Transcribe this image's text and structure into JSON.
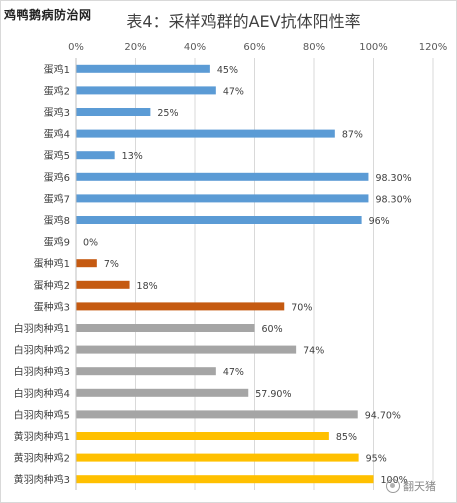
{
  "watermark": "鸡鸭鹅病防治网",
  "chart_data": {
    "type": "bar",
    "orientation": "horizontal",
    "title": "表4：采样鸡群的AEV抗体阳性率",
    "xlim": [
      0,
      120
    ],
    "x_ticks": [
      "0%",
      "20%",
      "40%",
      "60%",
      "80%",
      "100%",
      "120%"
    ],
    "grid": true,
    "categories": [
      "蛋鸡1",
      "蛋鸡2",
      "蛋鸡3",
      "蛋鸡4",
      "蛋鸡5",
      "蛋鸡6",
      "蛋鸡7",
      "蛋鸡8",
      "蛋鸡9",
      "蛋种鸡1",
      "蛋种鸡2",
      "蛋种鸡3",
      "白羽肉种鸡1",
      "白羽肉种鸡2",
      "白羽肉种鸡3",
      "白羽肉种鸡4",
      "白羽肉种鸡5",
      "黄羽肉种鸡1",
      "黄羽肉种鸡2",
      "黄羽肉种鸡3"
    ],
    "values": [
      45,
      47,
      25,
      87,
      13,
      98.3,
      98.3,
      96,
      0,
      7,
      18,
      70,
      60,
      74,
      47,
      57.9,
      94.7,
      85,
      95,
      100
    ],
    "labels": [
      "45%",
      "47%",
      "25%",
      "87%",
      "13%",
      "98.30%",
      "98.30%",
      "96%",
      "0%",
      "7%",
      "18%",
      "70%",
      "60%",
      "74%",
      "47%",
      "57.90%",
      "94.70%",
      "85%",
      "95%",
      "100%"
    ],
    "colors": [
      "#5b9bd5",
      "#5b9bd5",
      "#5b9bd5",
      "#5b9bd5",
      "#5b9bd5",
      "#5b9bd5",
      "#5b9bd5",
      "#5b9bd5",
      "#5b9bd5",
      "#c55a11",
      "#c55a11",
      "#c55a11",
      "#a5a5a5",
      "#a5a5a5",
      "#a5a5a5",
      "#a5a5a5",
      "#a5a5a5",
      "#ffc000",
      "#ffc000",
      "#ffc000"
    ]
  },
  "footer_watermark": "翻天猪"
}
